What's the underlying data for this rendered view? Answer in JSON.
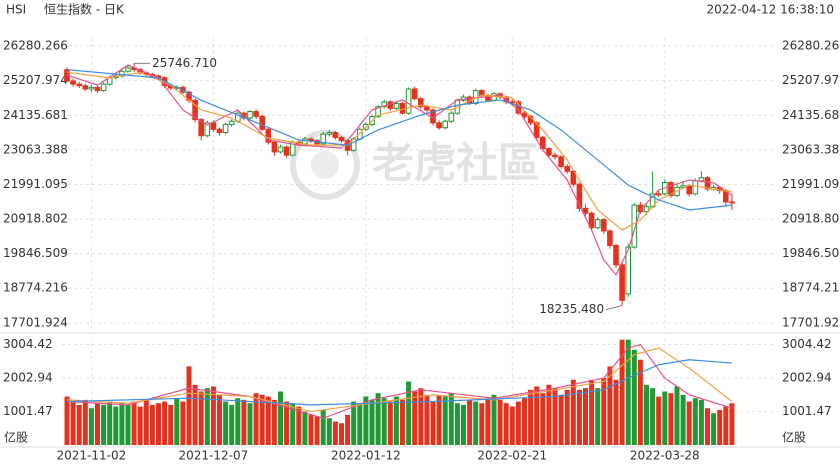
{
  "chart_data": {
    "type": "candlestick",
    "title": "HSI",
    "subtitle": "恒生指数 - 日K",
    "timestamp": "2022-04-12 16:38:10",
    "watermark": "老虎社區",
    "grid": true,
    "up_color": "#1f9a35",
    "down_color": "#e5321f",
    "categories": [
      null,
      null,
      null,
      null,
      "2021-11-02",
      null,
      null,
      null,
      null,
      null,
      null,
      null,
      null,
      null,
      null,
      null,
      null,
      null,
      null,
      null,
      null,
      null,
      null,
      null,
      "2021-12-07",
      null,
      null,
      null,
      null,
      null,
      null,
      null,
      null,
      null,
      null,
      null,
      null,
      null,
      null,
      null,
      null,
      null,
      null,
      null,
      null,
      null,
      null,
      null,
      null,
      "2022-01-12",
      null,
      null,
      null,
      null,
      null,
      null,
      null,
      null,
      null,
      null,
      null,
      null,
      null,
      null,
      null,
      null,
      null,
      null,
      null,
      null,
      null,
      null,
      null,
      "2022-02-21",
      null,
      null,
      null,
      null,
      null,
      null,
      null,
      null,
      null,
      null,
      null,
      null,
      null,
      null,
      null,
      null,
      null,
      null,
      null,
      null,
      null,
      null,
      null,
      null,
      "2022-03-28",
      null,
      null,
      null,
      null,
      null,
      null,
      null,
      null,
      null,
      null,
      null
    ],
    "open": [
      25550,
      25200,
      25100,
      25050,
      24950,
      25000,
      24900,
      25100,
      25300,
      25350,
      25500,
      25600,
      25550,
      25450,
      25400,
      25350,
      25300,
      25050,
      24980,
      25000,
      24850,
      24600,
      24000,
      23500,
      23900,
      23700,
      23600,
      23850,
      23950,
      24200,
      24050,
      24250,
      24100,
      23700,
      23300,
      23000,
      23150,
      22900,
      23300,
      23250,
      23400,
      23350,
      23250,
      23550,
      23600,
      23450,
      23350,
      23050,
      23400,
      23700,
      23850,
      24100,
      24400,
      24550,
      24350,
      24500,
      24200,
      24950,
      24650,
      24400,
      24300,
      23900,
      23750,
      23950,
      24200,
      24600,
      24700,
      24500,
      24900,
      24750,
      24600,
      24800,
      24700,
      24550,
      24550,
      24200,
      24100,
      23900,
      23450,
      23100,
      22900,
      22850,
      22550,
      22400,
      22000,
      21250,
      21100,
      20650,
      20900,
      20550,
      20100,
      19500,
      18600,
      20050,
      21350,
      21150,
      21300,
      21700,
      21700,
      22050,
      21650,
      21900,
      21950,
      21700,
      22100,
      22200,
      21850,
      21900,
      21800,
      21450
    ],
    "high": [
      25620,
      25280,
      25180,
      25120,
      25080,
      25060,
      25160,
      25360,
      25420,
      25560,
      25680,
      25746.71,
      25600,
      25500,
      25450,
      25400,
      25340,
      25120,
      25060,
      25050,
      24900,
      24650,
      24050,
      23960,
      23980,
      23760,
      23900,
      24020,
      24260,
      24250,
      24300,
      24320,
      24150,
      23760,
      23350,
      23220,
      23200,
      23350,
      23380,
      23460,
      23450,
      23400,
      23620,
      23680,
      23650,
      23500,
      23400,
      23460,
      23760,
      23920,
      24160,
      24460,
      24620,
      24600,
      24560,
      24550,
      25000,
      25020,
      24700,
      24460,
      24350,
      23980,
      24000,
      24260,
      24660,
      24780,
      24750,
      24960,
      24950,
      24800,
      24860,
      24850,
      24750,
      24620,
      24600,
      24260,
      24150,
      23950,
      23500,
      23150,
      22980,
      22900,
      22620,
      22450,
      22050,
      21380,
      21150,
      20980,
      20950,
      20600,
      20150,
      19600,
      20150,
      21420,
      21450,
      21380,
      22400,
      21800,
      22150,
      22100,
      22000,
      22100,
      22000,
      22180,
      22400,
      22250,
      21980,
      21950,
      21850,
      21700
    ],
    "low": [
      25150,
      25020,
      24980,
      24880,
      24850,
      24820,
      24860,
      25050,
      25250,
      25300,
      25450,
      25480,
      25400,
      25330,
      25280,
      25220,
      24990,
      24920,
      24900,
      24780,
      24520,
      23920,
      23350,
      23450,
      23620,
      23500,
      23550,
      23780,
      23900,
      23980,
      24000,
      24020,
      23650,
      23220,
      22880,
      22950,
      22820,
      22860,
      23180,
      23200,
      23280,
      23180,
      23200,
      23480,
      23380,
      23280,
      22900,
      23000,
      23350,
      23650,
      23800,
      24050,
      24350,
      24280,
      24300,
      24150,
      24150,
      24600,
      24330,
      24200,
      23820,
      23680,
      23700,
      23900,
      24150,
      24550,
      24450,
      24450,
      24680,
      24550,
      24560,
      24640,
      24480,
      24480,
      24150,
      24020,
      23820,
      23380,
      23020,
      22820,
      22760,
      22480,
      22320,
      21920,
      21150,
      21000,
      20550,
      20600,
      20450,
      20000,
      19400,
      18235.48,
      18500,
      20000,
      21080,
      21050,
      21250,
      21600,
      21650,
      21580,
      21600,
      21850,
      21620,
      21650,
      22050,
      21780,
      21800,
      21700,
      21300,
      21200
    ],
    "close": [
      25200,
      25100,
      25050,
      24950,
      25000,
      24900,
      25100,
      25300,
      25350,
      25500,
      25600,
      25550,
      25450,
      25400,
      25350,
      25300,
      25050,
      24980,
      25000,
      24850,
      24600,
      24000,
      23500,
      23900,
      23700,
      23600,
      23850,
      23950,
      24200,
      24050,
      24250,
      24100,
      23700,
      23300,
      23000,
      23150,
      22900,
      23300,
      23250,
      23400,
      23350,
      23250,
      23550,
      23600,
      23450,
      23350,
      23050,
      23400,
      23700,
      23850,
      24100,
      24400,
      24550,
      24350,
      24500,
      24200,
      24950,
      24650,
      24400,
      24300,
      23900,
      23750,
      23950,
      24200,
      24600,
      24700,
      24500,
      24900,
      24750,
      24600,
      24800,
      24700,
      24550,
      24550,
      24200,
      24100,
      23900,
      23450,
      23100,
      22900,
      22850,
      22550,
      22400,
      22000,
      21250,
      21100,
      20650,
      20900,
      20550,
      20100,
      19500,
      18400,
      20050,
      21350,
      21150,
      21300,
      21700,
      21700,
      22050,
      21650,
      21900,
      21950,
      21700,
      22100,
      22200,
      21850,
      21900,
      21800,
      21450,
      21450
    ],
    "ylim": [
      17480,
      26530
    ],
    "yticks": [
      17701.924,
      18774.216,
      19846.509,
      20918.802,
      21991.095,
      23063.388,
      24135.681,
      25207.974,
      26280.266
    ],
    "ma": [
      {
        "color": "#e8508a",
        "x": [
          0,
          5,
          10,
          15,
          19,
          23,
          28,
          33,
          38,
          45,
          50,
          55,
          60,
          64,
          71,
          74,
          78,
          82,
          86,
          88,
          90,
          92,
          94,
          97,
          102,
          106,
          109
        ],
        "values": [
          25380,
          25070,
          25690,
          25290,
          24300,
          23830,
          24300,
          23370,
          23210,
          23120,
          24300,
          24610,
          24050,
          24610,
          24760,
          24300,
          23060,
          22130,
          20580,
          19650,
          19190,
          19960,
          21200,
          21820,
          22130,
          22040,
          21660
        ]
      },
      {
        "color": "#f0a040",
        "x": [
          0,
          7,
          12,
          17,
          22,
          27,
          33,
          40,
          46,
          51,
          58,
          63,
          68,
          73,
          78,
          82,
          87,
          91,
          94,
          97,
          102,
          109
        ],
        "values": [
          25470,
          25290,
          25470,
          25070,
          24300,
          24050,
          23430,
          23210,
          23210,
          24140,
          24450,
          24300,
          24760,
          24670,
          23680,
          22750,
          21200,
          20580,
          20890,
          21510,
          21970,
          21760
        ]
      },
      {
        "color": "#3d8fe0",
        "x": [
          0,
          15,
          22,
          30,
          38,
          46,
          51,
          58,
          64,
          71,
          76,
          81,
          87,
          92,
          97,
          102,
          109
        ],
        "values": [
          25550,
          25290,
          24600,
          23990,
          23370,
          23210,
          23680,
          24140,
          24450,
          24610,
          24300,
          23680,
          22750,
          21970,
          21510,
          21200,
          21350
        ]
      }
    ],
    "annotations": [
      {
        "field": "high",
        "value": 25746.71,
        "label": "25746.710"
      },
      {
        "field": "low",
        "value": 18235.48,
        "label": "18235.480"
      }
    ],
    "volume": {
      "unit": "亿股",
      "ylim": [
        0,
        3200
      ],
      "yticks": [
        1001.47,
        2002.94,
        3004.42
      ],
      "values": [
        1450,
        1300,
        1200,
        1350,
        1100,
        1250,
        1200,
        1300,
        1150,
        1250,
        1200,
        1300,
        1150,
        1350,
        1200,
        1250,
        1300,
        1200,
        1400,
        1300,
        2350,
        1800,
        1600,
        1700,
        1750,
        1500,
        1300,
        1200,
        1400,
        1350,
        1250,
        1550,
        1500,
        1450,
        1350,
        1600,
        1300,
        1250,
        1150,
        1000,
        900,
        850,
        1050,
        800,
        700,
        650,
        900,
        1300,
        1250,
        1450,
        1350,
        1550,
        1400,
        1300,
        1450,
        1350,
        1900,
        1600,
        1700,
        1500,
        1300,
        1500,
        1450,
        1550,
        1250,
        1200,
        1350,
        1300,
        1250,
        1400,
        1500,
        1350,
        1250,
        1150,
        1300,
        1400,
        1650,
        1750,
        1550,
        1800,
        1700,
        1500,
        1650,
        1950,
        1650,
        1700,
        1950,
        1700,
        2000,
        2350,
        1950,
        3150,
        3150,
        2850,
        2550,
        1800,
        1700,
        1450,
        1600,
        1550,
        1750,
        1500,
        1300,
        1400,
        1350,
        1100,
        950,
        1050,
        1150,
        1250
      ],
      "ma": [
        {
          "color": "#e8508a",
          "x": [
            0,
            10,
            20,
            30,
            42,
            50,
            58,
            70,
            80,
            88,
            92,
            94,
            98,
            102,
            109
          ],
          "values": [
            1300,
            1200,
            1700,
            1450,
            800,
            1350,
            1650,
            1400,
            1700,
            2000,
            2900,
            3000,
            2000,
            1500,
            1100
          ]
        },
        {
          "color": "#f0a040",
          "x": [
            0,
            10,
            20,
            30,
            40,
            50,
            60,
            70,
            80,
            88,
            93,
            97,
            102,
            109
          ],
          "values": [
            1350,
            1250,
            1550,
            1450,
            1000,
            1250,
            1500,
            1350,
            1650,
            1900,
            2700,
            2900,
            2300,
            1300
          ]
        },
        {
          "color": "#3d8fe0",
          "x": [
            0,
            20,
            40,
            60,
            80,
            88,
            92,
            97,
            102,
            109
          ],
          "values": [
            1300,
            1400,
            1200,
            1300,
            1450,
            1650,
            2000,
            2400,
            2550,
            2450
          ]
        }
      ]
    }
  }
}
